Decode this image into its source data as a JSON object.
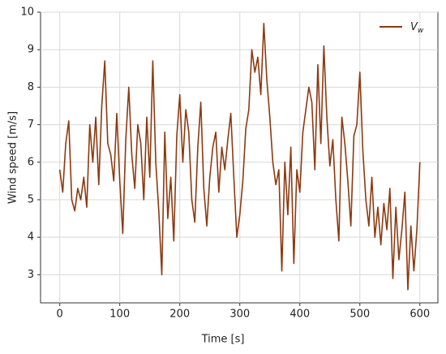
{
  "chart_data": {
    "type": "line",
    "x_label": "Time [s]",
    "y_label": "Wind speed [m/s]",
    "x": [
      0,
      5,
      10,
      15,
      20,
      25,
      30,
      35,
      40,
      45,
      50,
      55,
      60,
      65,
      70,
      75,
      80,
      85,
      90,
      95,
      100,
      105,
      110,
      115,
      120,
      125,
      130,
      135,
      140,
      145,
      150,
      155,
      160,
      165,
      170,
      175,
      180,
      185,
      190,
      195,
      200,
      205,
      210,
      215,
      220,
      225,
      230,
      235,
      240,
      245,
      250,
      255,
      260,
      265,
      270,
      275,
      280,
      285,
      290,
      295,
      300,
      305,
      310,
      315,
      320,
      325,
      330,
      335,
      340,
      345,
      350,
      355,
      360,
      365,
      370,
      375,
      380,
      385,
      390,
      395,
      400,
      405,
      410,
      415,
      420,
      425,
      430,
      435,
      440,
      445,
      450,
      455,
      460,
      465,
      470,
      475,
      480,
      485,
      490,
      495,
      500,
      505,
      510,
      515,
      520,
      525,
      530,
      535,
      540,
      545,
      550,
      555,
      560,
      565,
      570,
      575,
      580,
      585,
      590,
      595,
      600
    ],
    "series": [
      {
        "name": "Vw",
        "color": "#8c3a10",
        "values": [
          5.8,
          5.2,
          6.5,
          7.1,
          5.0,
          4.7,
          5.3,
          5.0,
          5.6,
          4.8,
          7.0,
          6.0,
          7.2,
          5.4,
          7.5,
          8.7,
          6.5,
          6.2,
          5.5,
          7.3,
          5.5,
          4.1,
          6.6,
          8.0,
          6.2,
          5.3,
          7.0,
          6.5,
          5.0,
          7.2,
          5.6,
          8.7,
          6.0,
          4.7,
          3.0,
          6.8,
          4.5,
          5.6,
          3.9,
          6.7,
          7.8,
          6.0,
          7.4,
          6.8,
          5.0,
          4.4,
          6.4,
          7.6,
          5.3,
          4.3,
          5.6,
          6.4,
          6.8,
          5.2,
          6.4,
          5.8,
          6.6,
          7.3,
          5.6,
          4.0,
          4.6,
          5.5,
          6.9,
          7.4,
          9.0,
          8.4,
          8.8,
          7.8,
          9.7,
          8.2,
          7.2,
          6.0,
          5.4,
          5.8,
          3.1,
          6.0,
          4.6,
          6.4,
          3.3,
          5.8,
          5.2,
          6.8,
          7.4,
          8.0,
          7.6,
          5.8,
          8.6,
          6.5,
          9.1,
          7.2,
          5.9,
          6.6,
          5.0,
          3.9,
          7.2,
          6.5,
          5.5,
          4.3,
          6.7,
          7.0,
          8.4,
          6.3,
          5.0,
          4.3,
          5.6,
          4.0,
          4.8,
          3.8,
          4.9,
          4.2,
          5.3,
          2.9,
          4.8,
          3.4,
          4.2,
          5.2,
          2.6,
          4.3,
          3.1,
          4.2,
          6.0
        ]
      }
    ],
    "xlim": [
      -32,
      630
    ],
    "ylim": [
      2.25,
      10
    ],
    "xticks": [
      0,
      100,
      200,
      300,
      400,
      500,
      600
    ],
    "yticks": [
      3,
      4,
      5,
      6,
      7,
      8,
      9,
      10
    ],
    "grid": true,
    "legend": "upper right"
  }
}
